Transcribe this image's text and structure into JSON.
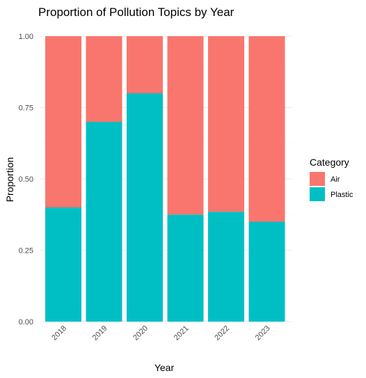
{
  "chart_data": {
    "type": "bar",
    "stacked": true,
    "title": "Proportion of Pollution Topics by Year",
    "xlabel": "Year",
    "ylabel": "Proportion",
    "categories": [
      "2018",
      "2019",
      "2020",
      "2021",
      "2022",
      "2023"
    ],
    "series": [
      {
        "name": "Plastic",
        "color": "#00BFC4",
        "values": [
          0.4,
          0.7,
          0.8,
          0.375,
          0.385,
          0.35
        ]
      },
      {
        "name": "Air",
        "color": "#F8766D",
        "values": [
          0.6,
          0.3,
          0.2,
          0.625,
          0.615,
          0.65
        ]
      }
    ],
    "ylim": [
      0,
      1
    ],
    "yticks": [
      "0.00",
      "0.25",
      "0.50",
      "0.75",
      "1.00"
    ],
    "grid": true,
    "legend": {
      "title": "Category",
      "position": "right",
      "entries": [
        {
          "label": "Air",
          "color": "#F8766D"
        },
        {
          "label": "Plastic",
          "color": "#00BFC4"
        }
      ]
    }
  }
}
